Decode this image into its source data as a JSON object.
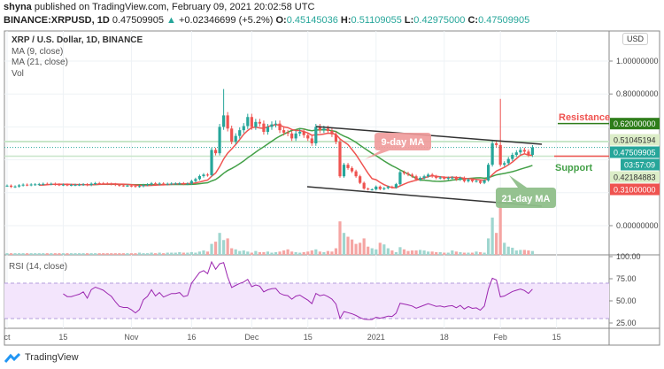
{
  "header": {
    "publisher": "shyna",
    "published_text": "published on TradingView.com, February 09, 2021 20:02:58 UTC",
    "symbol": "BINANCE:XRPUSD, 1D",
    "last": "0.47509905",
    "change": "+0.02346699 (+5.2%)",
    "o_label": "O:",
    "open": "0.45145036",
    "h_label": "H:",
    "high": "0.51109055",
    "l_label": "L:",
    "low": "0.42975000",
    "c_label": "C:",
    "close": "0.47509905"
  },
  "legend": {
    "title": "XRP / U.S. Dollar, 1D, BINANCE",
    "ma9": "MA (9, close)",
    "ma21": "MA (21, close)",
    "vol": "Vol",
    "rsi": "RSI (14, close)"
  },
  "currency_button": "USD",
  "brand": "TradingView",
  "colors": {
    "up": "#26a69a",
    "down": "#ef5350",
    "ma9": "#ef5350",
    "ma21": "#43a047",
    "rsi": "#9c27b0",
    "resistance": "#2e7d1a",
    "support_label": "#ef5350"
  },
  "chart_data": {
    "type": "candlestick",
    "start_date": "2020-10-01",
    "closes": [
      0.243,
      0.236,
      0.238,
      0.245,
      0.249,
      0.247,
      0.25,
      0.251,
      0.252,
      0.254,
      0.253,
      0.254,
      0.25,
      0.248,
      0.249,
      0.247,
      0.247,
      0.248,
      0.249,
      0.251,
      0.247,
      0.255,
      0.258,
      0.257,
      0.256,
      0.254,
      0.252,
      0.248,
      0.244,
      0.243,
      0.243,
      0.241,
      0.238,
      0.24,
      0.247,
      0.25,
      0.257,
      0.252,
      0.256,
      0.252,
      0.254,
      0.256,
      0.256,
      0.257,
      0.254,
      0.255,
      0.271,
      0.283,
      0.301,
      0.31,
      0.307,
      0.46,
      0.44,
      0.6,
      0.67,
      0.59,
      0.51,
      0.545,
      0.58,
      0.605,
      0.66,
      0.6,
      0.63,
      0.62,
      0.57,
      0.6,
      0.615,
      0.62,
      0.58,
      0.565,
      0.56,
      0.53,
      0.56,
      0.57,
      0.55,
      0.53,
      0.5,
      0.6,
      0.58,
      0.59,
      0.575,
      0.555,
      0.51,
      0.3,
      0.37,
      0.35,
      0.33,
      0.3,
      0.26,
      0.225,
      0.22,
      0.22,
      0.237,
      0.222,
      0.228,
      0.236,
      0.232,
      0.252,
      0.325,
      0.318,
      0.31,
      0.3,
      0.28,
      0.29,
      0.3,
      0.31,
      0.3,
      0.29,
      0.292,
      0.285,
      0.29,
      0.292,
      0.28,
      0.29,
      0.27,
      0.28,
      0.27,
      0.272,
      0.26,
      0.275,
      0.37,
      0.5,
      0.49,
      0.37,
      0.38,
      0.405,
      0.43,
      0.445,
      0.46,
      0.45,
      0.43,
      0.475
    ],
    "high_overrides": {
      "2020-11-24": 0.83,
      "2021-02-01": 0.77
    },
    "volume_relative": [
      3,
      3,
      3,
      3,
      3,
      3,
      3,
      3,
      3,
      3,
      3,
      3,
      3,
      3,
      3,
      3,
      3,
      3,
      3,
      3,
      3,
      3,
      3,
      3,
      3,
      3,
      3,
      3,
      3,
      3,
      3,
      3,
      3,
      4,
      3,
      3,
      4,
      3,
      4,
      3,
      4,
      4,
      4,
      5,
      4,
      4,
      5,
      4,
      6,
      8,
      6,
      20,
      24,
      40,
      27,
      30,
      12,
      10,
      7,
      8,
      6,
      4,
      7,
      5,
      5,
      6,
      4,
      5,
      6,
      8,
      10,
      6,
      5,
      4,
      5,
      6,
      8,
      10,
      6,
      5,
      7,
      6,
      12,
      61,
      40,
      33,
      28,
      20,
      22,
      30,
      15,
      12,
      10,
      22,
      19,
      12,
      8,
      5,
      14,
      10,
      7,
      8,
      8,
      9,
      8,
      6,
      6,
      5,
      5,
      4,
      4,
      8,
      6,
      5,
      4,
      4,
      4,
      6,
      5,
      4,
      30,
      68,
      40,
      100,
      22,
      15,
      13,
      8,
      9,
      9,
      8,
      7
    ],
    "ylim": [
      -0.1,
      1.1
    ],
    "price_ticks": [
      "1.00000000",
      "0.80000000",
      "0.00000000"
    ],
    "price_tick_values": [
      1.0,
      0.8,
      0.0
    ],
    "x_ticks": [
      {
        "label": "ct",
        "date": "2020-10-01"
      },
      {
        "label": "15",
        "date": "2020-10-15"
      },
      {
        "label": "Nov",
        "date": "2020-11-01"
      },
      {
        "label": "16",
        "date": "2020-11-16"
      },
      {
        "label": "Dec",
        "date": "2020-12-01"
      },
      {
        "label": "15",
        "date": "2020-12-15"
      },
      {
        "label": "2021",
        "date": "2021-01-01"
      },
      {
        "label": "18",
        "date": "2021-01-18"
      },
      {
        "label": "Feb",
        "date": "2021-02-01"
      },
      {
        "label": "15",
        "date": "2021-02-15"
      }
    ],
    "rsi_ticks": [
      "100.00",
      "75.00",
      "50.00",
      "25.00"
    ],
    "rsi_tick_values": [
      100,
      75,
      50,
      25
    ],
    "rsi_band": [
      30,
      70
    ],
    "levels": {
      "resistance": {
        "label": "Resistance",
        "value": 0.62,
        "text": "0.62000000"
      },
      "support": {
        "label": "Support",
        "value": 0.31,
        "text": "0.31000000"
      },
      "upper_band": {
        "value": 0.51045194,
        "text": "0.51045194"
      },
      "lower_band": {
        "value": 0.42184883,
        "text": "0.42184883"
      },
      "last_price": {
        "value": 0.47509905,
        "text": "0.47509905",
        "countdown": "03:57:09"
      }
    },
    "annotations": {
      "ma9": "9-day MA",
      "ma21": "21-day MA"
    }
  }
}
